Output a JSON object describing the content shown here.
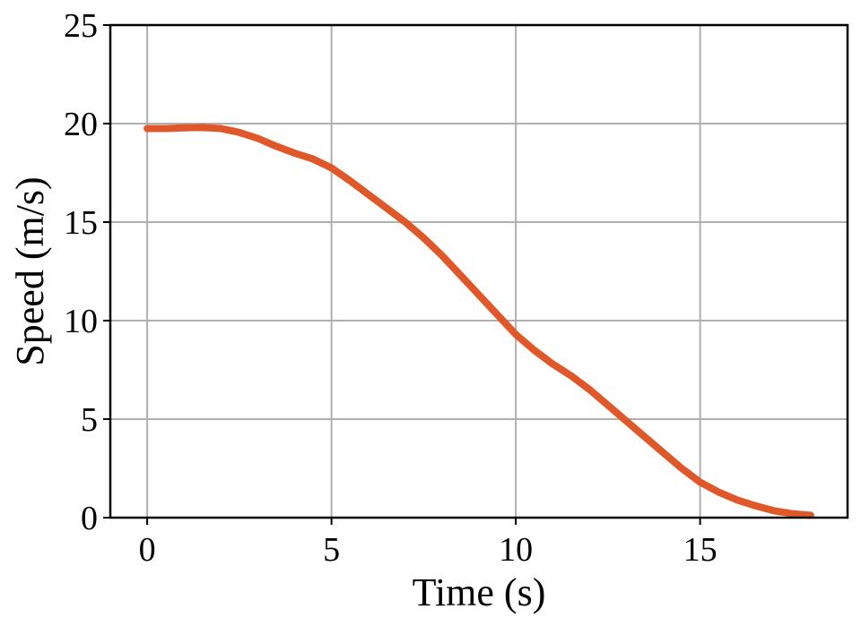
{
  "chart_data": {
    "type": "line",
    "title": "",
    "xlabel": "Time (s)",
    "ylabel": "Speed (m/s)",
    "xlim": [
      -1,
      19
    ],
    "ylim": [
      0,
      25
    ],
    "xticks": [
      0,
      5,
      10,
      15
    ],
    "yticks": [
      0,
      5,
      10,
      15,
      20,
      25
    ],
    "grid": true,
    "series": [
      {
        "color": "#e0582a",
        "x": [
          0,
          0.5,
          1,
          1.5,
          2,
          2.5,
          3,
          3.5,
          4,
          4.5,
          5,
          5.5,
          6,
          6.5,
          7,
          7.5,
          8,
          8.5,
          9,
          9.5,
          10,
          10.5,
          11,
          11.5,
          12,
          12.5,
          13,
          13.5,
          14,
          14.5,
          15,
          15.5,
          16,
          16.5,
          17,
          17.5,
          18
        ],
        "y": [
          19.75,
          19.75,
          19.78,
          19.8,
          19.75,
          19.55,
          19.25,
          18.85,
          18.5,
          18.2,
          17.75,
          17.1,
          16.4,
          15.7,
          15.0,
          14.2,
          13.3,
          12.3,
          11.3,
          10.3,
          9.3,
          8.5,
          7.8,
          7.2,
          6.5,
          5.7,
          4.9,
          4.1,
          3.3,
          2.5,
          1.8,
          1.3,
          0.9,
          0.6,
          0.35,
          0.2,
          0.12
        ]
      }
    ]
  }
}
